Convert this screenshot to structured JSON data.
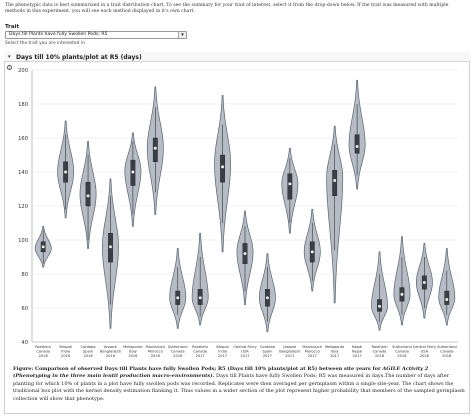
{
  "intro": "The phenotypic data is best summarized in a trait distribution chart. To see the summary for your trait of interest, select it from the drop-down below. If the trait was measured with multiple methods in this experiment, you will see each method displayed in it's own chart.",
  "trait": {
    "label": "Trait",
    "selected": "Days till Plants have fully Swollen Pods; R5",
    "help": "Select the trait you are interested in."
  },
  "panel": {
    "title": "Days till 10% plants/plot at R5 (days)",
    "arrow": "▾",
    "info_icon": "i"
  },
  "chart_data": {
    "type": "violin",
    "title": "Days till 10% plants/plot at R5 (days)",
    "xlabel": "",
    "ylabel": "",
    "ylim": [
      40,
      200
    ],
    "yticks": [
      40,
      60,
      80,
      100,
      120,
      140,
      160,
      180,
      200
    ],
    "grid": true,
    "violin_color": "#b6bcc6",
    "violin_stroke": "#5a6470",
    "categories": [
      {
        "site": "Rosthern",
        "country": "Canada",
        "year": "2016",
        "median": 96,
        "q1": 93,
        "q3": 99,
        "min": 86,
        "max": 106,
        "vmin": 84,
        "vmax": 108,
        "peak": 95
      },
      {
        "site": "Bhopal",
        "country": "India",
        "year": "2016",
        "median": 140,
        "q1": 134,
        "q3": 146,
        "min": 118,
        "max": 162,
        "vmin": 113,
        "vmax": 170,
        "peak": 140
      },
      {
        "site": "Cordoba",
        "country": "Spain",
        "year": "2016",
        "median": 126,
        "q1": 120,
        "q3": 134,
        "min": 100,
        "max": 150,
        "vmin": 95,
        "vmax": 158,
        "peak": 127
      },
      {
        "site": "Jessore",
        "country": "Bangladesh",
        "year": "2016",
        "median": 96,
        "q1": 87,
        "q3": 104,
        "min": 62,
        "max": 126,
        "vmin": 48,
        "vmax": 136,
        "peak": 96
      },
      {
        "site": "Metaponto",
        "country": "Italy",
        "year": "2016",
        "median": 140,
        "q1": 132,
        "q3": 147,
        "min": 115,
        "max": 158,
        "vmin": 108,
        "vmax": 163,
        "peak": 141
      },
      {
        "site": "Marchouch",
        "country": "Morocco",
        "year": "2016",
        "median": 154,
        "q1": 146,
        "q3": 160,
        "min": 128,
        "max": 178,
        "vmin": 115,
        "vmax": 190,
        "peak": 154
      },
      {
        "site": "Sutherland",
        "country": "Canada",
        "year": "2016",
        "median": 66,
        "q1": 62,
        "q3": 70,
        "min": 56,
        "max": 84,
        "vmin": 48,
        "vmax": 95,
        "peak": 66
      },
      {
        "site": "Rosthern",
        "country": "Canada",
        "year": "2017",
        "median": 66,
        "q1": 62,
        "q3": 71,
        "min": 55,
        "max": 90,
        "vmin": 50,
        "vmax": 104,
        "peak": 66
      },
      {
        "site": "Bhopal",
        "country": "India",
        "year": "2017",
        "median": 143,
        "q1": 134,
        "q3": 150,
        "min": 110,
        "max": 168,
        "vmin": 93,
        "vmax": 185,
        "peak": 145
      },
      {
        "site": "Central Ferry",
        "country": "USA",
        "year": "2017",
        "median": 92,
        "q1": 86,
        "q3": 98,
        "min": 70,
        "max": 108,
        "vmin": 62,
        "vmax": 117,
        "peak": 93
      },
      {
        "site": "Cordoba",
        "country": "Spain",
        "year": "2017",
        "median": 66,
        "q1": 61,
        "q3": 71,
        "min": 52,
        "max": 84,
        "vmin": 46,
        "vmax": 92,
        "peak": 66
      },
      {
        "site": "Jessore",
        "country": "Bangladesh",
        "year": "2017",
        "median": 133,
        "q1": 124,
        "q3": 139,
        "min": 110,
        "max": 148,
        "vmin": 104,
        "vmax": 154,
        "peak": 133
      },
      {
        "site": "Marchouch",
        "country": "Morocco",
        "year": "2017",
        "median": 93,
        "q1": 87,
        "q3": 99,
        "min": 76,
        "max": 110,
        "vmin": 70,
        "vmax": 118,
        "peak": 93
      },
      {
        "site": "Metaponto",
        "country": "Italy",
        "year": "2017",
        "median": 135,
        "q1": 126,
        "q3": 141,
        "min": 94,
        "max": 156,
        "vmin": 63,
        "vmax": 167,
        "peak": 137
      },
      {
        "site": "Nepal",
        "country": "Nepal",
        "year": "2017",
        "median": 155,
        "q1": 151,
        "q3": 162,
        "min": 138,
        "max": 180,
        "vmin": 130,
        "vmax": 194,
        "peak": 156
      },
      {
        "site": "Rosthern",
        "country": "Canada",
        "year": "2018",
        "median": 61,
        "q1": 58,
        "q3": 65,
        "min": 52,
        "max": 80,
        "vmin": 47,
        "vmax": 93,
        "peak": 61
      },
      {
        "site": "Sutherland",
        "country": "Canada",
        "year": "2018",
        "median": 68,
        "q1": 64,
        "q3": 72,
        "min": 56,
        "max": 90,
        "vmin": 50,
        "vmax": 102,
        "peak": 68
      },
      {
        "site": "Central Ferry",
        "country": "USA",
        "year": "2018",
        "median": 75,
        "q1": 71,
        "q3": 79,
        "min": 60,
        "max": 90,
        "vmin": 54,
        "vmax": 98,
        "peak": 75
      },
      {
        "site": "Sutherland",
        "country": "Canada",
        "year": "2018",
        "median": 65,
        "q1": 62,
        "q3": 70,
        "min": 56,
        "max": 82,
        "vmin": 50,
        "vmax": 95,
        "peak": 66
      }
    ]
  },
  "caption": {
    "title_prefix": "Figure: Comparison of observed Days till Plants have fully Swollen Pods; R5 (Days till 10% plants/plot at R5) between site years for ",
    "title_italic": "AGILE Activity 2 (Phenotyping in the three main lentil production macro-environments)",
    "title_suffix": ".",
    "body": "Days till Plants have fully Swollen Pods; R5 was measured in days.The number of days after planting for which 10% of plants in a plot have fully swollen pods was recorded. Replicates were then averaged per germplasm within a single site-year. The chart shows the traditional box plot with the kernel density estimation flanking it. Thus values in a wider section of the plot represent higher probability that members of the sampled germplasm collection will show that phenotype."
  }
}
